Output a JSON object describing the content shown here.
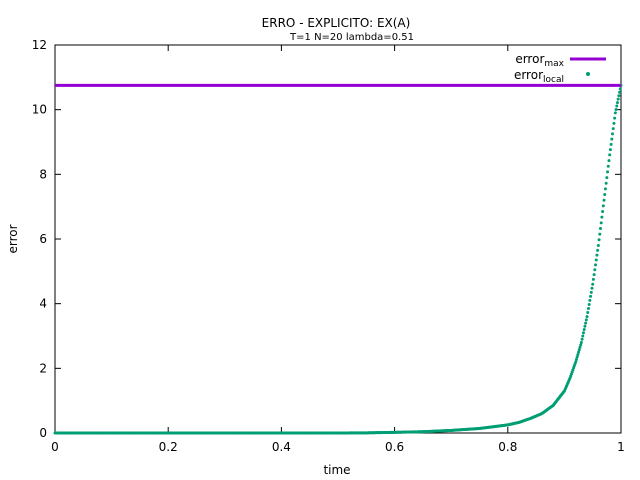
{
  "chart_data": {
    "type": "scatter",
    "title": "ERRO - EXPLICITO: EX(A)",
    "subtitle": "T=1 N=20 lambda=0.51",
    "xlabel": "time",
    "ylabel": "error",
    "xlim": [
      0,
      1
    ],
    "ylim": [
      0,
      12
    ],
    "x_ticks": [
      "0",
      "0.2",
      "0.4",
      "0.6",
      "0.8",
      "1"
    ],
    "y_ticks": [
      "0",
      "2",
      "4",
      "6",
      "8",
      "10",
      "12"
    ],
    "grid": false,
    "legend_position": "top-right",
    "series": [
      {
        "name": "error",
        "name_subscript": "max",
        "style": "line",
        "color": "#9400d3",
        "value": 10.75
      },
      {
        "name": "error",
        "name_subscript": "local",
        "style": "points",
        "color": "#009e73",
        "x": [
          0,
          0.1,
          0.2,
          0.3,
          0.4,
          0.5,
          0.55,
          0.6,
          0.65,
          0.7,
          0.75,
          0.8,
          0.82,
          0.84,
          0.86,
          0.88,
          0.9,
          0.91,
          0.92,
          0.93,
          0.94,
          0.95,
          0.96,
          0.97,
          0.98,
          0.99,
          1.0
        ],
        "y": [
          0.0,
          0.0,
          0.0,
          0.0,
          0.0,
          0.0,
          0.005,
          0.02,
          0.04,
          0.08,
          0.14,
          0.25,
          0.33,
          0.45,
          0.6,
          0.85,
          1.3,
          1.7,
          2.2,
          2.8,
          3.6,
          4.6,
          5.8,
          7.2,
          8.6,
          9.9,
          10.75
        ]
      }
    ]
  }
}
